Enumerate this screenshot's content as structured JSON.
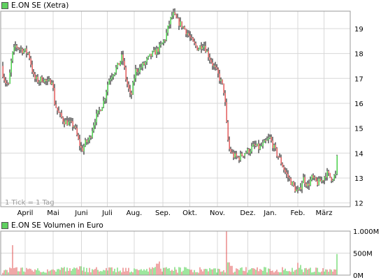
{
  "colors": {
    "up": "#3ccc3c",
    "down": "#e05050",
    "bar": "#000000",
    "grid": "#d8d8d8",
    "frame": "#9a9a9a",
    "swatch": "#60d060"
  },
  "chart_data": [
    {
      "type": "ohlc",
      "title": "E.ON SE (Xetra)",
      "note": "1 Tick = 1 Tag",
      "ylim": [
        11.85,
        19.7
      ],
      "y_ticks": [
        12,
        13,
        14,
        15,
        16,
        17,
        18,
        19
      ],
      "y_tick_labels": [
        "12",
        "13",
        "14",
        "15",
        "16",
        "17",
        "18",
        "19"
      ],
      "x_range": [
        0,
        1
      ],
      "x_ticks": [
        {
          "label": "April",
          "x": 0.07
        },
        {
          "label": "Mai",
          "x": 0.15
        },
        {
          "label": "Juni",
          "x": 0.231
        },
        {
          "label": "Juli",
          "x": 0.305
        },
        {
          "label": "Aug.",
          "x": 0.382
        },
        {
          "label": "Sep.",
          "x": 0.464
        },
        {
          "label": "Okt.",
          "x": 0.541
        },
        {
          "label": "Nov.",
          "x": 0.62
        },
        {
          "label": "Dez.",
          "x": 0.707
        },
        {
          "label": "Jan.",
          "x": 0.771
        },
        {
          "label": "Feb.",
          "x": 0.85
        },
        {
          "label": "März",
          "x": 0.925
        }
      ],
      "close_path": [
        [
          0.0,
          17.5
        ],
        [
          0.012,
          16.9
        ],
        [
          0.022,
          16.7
        ],
        [
          0.032,
          17.9
        ],
        [
          0.042,
          18.3
        ],
        [
          0.055,
          18.2
        ],
        [
          0.068,
          18.1
        ],
        [
          0.08,
          18.0
        ],
        [
          0.095,
          17.0
        ],
        [
          0.108,
          16.9
        ],
        [
          0.12,
          17.0
        ],
        [
          0.135,
          16.8
        ],
        [
          0.148,
          17.0
        ],
        [
          0.152,
          16.1
        ],
        [
          0.165,
          15.6
        ],
        [
          0.18,
          15.3
        ],
        [
          0.195,
          15.2
        ],
        [
          0.21,
          15.1
        ],
        [
          0.222,
          14.5
        ],
        [
          0.232,
          14.1
        ],
        [
          0.242,
          14.4
        ],
        [
          0.255,
          14.6
        ],
        [
          0.268,
          15.3
        ],
        [
          0.282,
          15.7
        ],
        [
          0.295,
          16.1
        ],
        [
          0.308,
          16.9
        ],
        [
          0.32,
          17.2
        ],
        [
          0.335,
          17.5
        ],
        [
          0.348,
          17.9
        ],
        [
          0.358,
          17.0
        ],
        [
          0.372,
          16.2
        ],
        [
          0.385,
          17.3
        ],
        [
          0.398,
          17.4
        ],
        [
          0.412,
          17.6
        ],
        [
          0.428,
          17.9
        ],
        [
          0.445,
          18.1
        ],
        [
          0.458,
          18.3
        ],
        [
          0.47,
          18.6
        ],
        [
          0.482,
          19.2
        ],
        [
          0.492,
          19.6
        ],
        [
          0.505,
          19.3
        ],
        [
          0.52,
          19.1
        ],
        [
          0.535,
          18.8
        ],
        [
          0.55,
          18.4
        ],
        [
          0.565,
          18.2
        ],
        [
          0.58,
          18.4
        ],
        [
          0.592,
          18.0
        ],
        [
          0.605,
          17.6
        ],
        [
          0.62,
          17.2
        ],
        [
          0.632,
          16.8
        ],
        [
          0.64,
          16.4
        ],
        [
          0.645,
          15.3
        ],
        [
          0.652,
          14.2
        ],
        [
          0.665,
          13.9
        ],
        [
          0.68,
          13.8
        ],
        [
          0.695,
          14.0
        ],
        [
          0.71,
          14.1
        ],
        [
          0.725,
          14.3
        ],
        [
          0.74,
          14.2
        ],
        [
          0.755,
          14.4
        ],
        [
          0.77,
          14.6
        ],
        [
          0.785,
          14.1
        ],
        [
          0.8,
          13.7
        ],
        [
          0.815,
          13.2
        ],
        [
          0.828,
          12.9
        ],
        [
          0.84,
          12.6
        ],
        [
          0.852,
          12.4
        ],
        [
          0.865,
          13.0
        ],
        [
          0.878,
          12.7
        ],
        [
          0.89,
          13.0
        ],
        [
          0.905,
          12.8
        ],
        [
          0.918,
          12.9
        ],
        [
          0.932,
          13.2
        ],
        [
          0.945,
          13.0
        ],
        [
          0.958,
          13.1
        ],
        [
          0.962,
          13.8
        ]
      ]
    },
    {
      "type": "bar",
      "title": "E.ON SE Volumen in Euro",
      "ylim": [
        0,
        1000
      ],
      "y_tick_labels": [
        "1.000M",
        "500M",
        "0M"
      ],
      "y_ticks": [
        1000,
        500,
        0
      ],
      "base_volume": 120,
      "spikes": [
        [
          0.0,
          320
        ],
        [
          0.035,
          680
        ],
        [
          0.225,
          250
        ],
        [
          0.228,
          200
        ],
        [
          0.448,
          260
        ],
        [
          0.455,
          310
        ],
        [
          0.648,
          1000
        ],
        [
          0.652,
          290
        ],
        [
          0.66,
          210
        ],
        [
          0.85,
          280
        ],
        [
          0.858,
          230
        ],
        [
          0.962,
          480
        ]
      ]
    }
  ]
}
